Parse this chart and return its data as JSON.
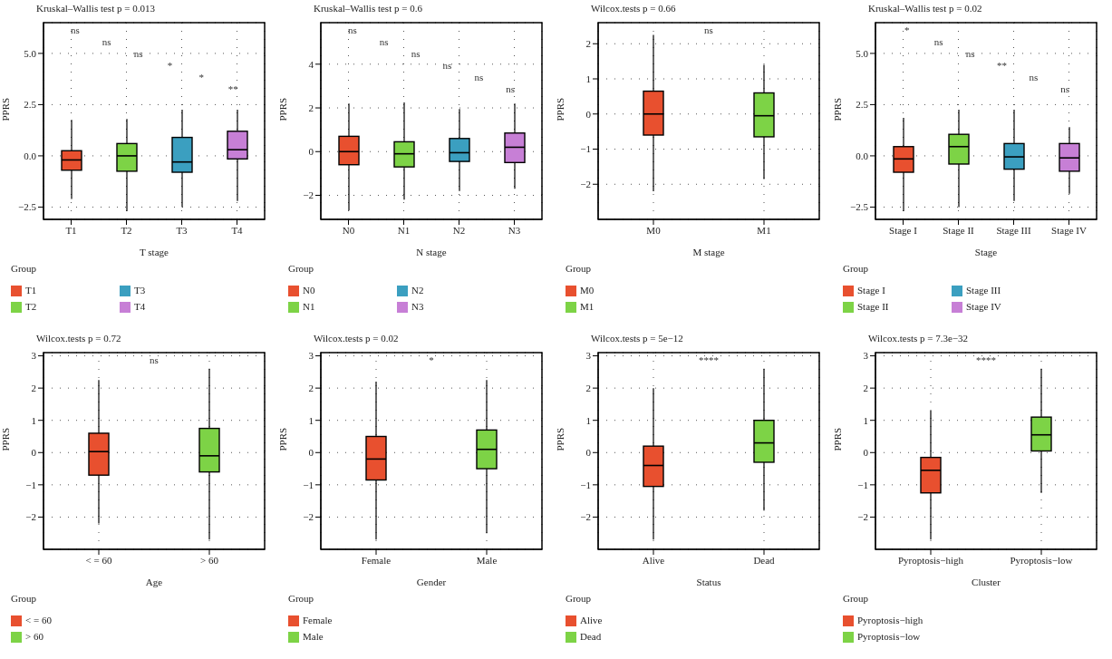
{
  "chart_data": [
    {
      "type": "box",
      "title": "Kruskal–Wallis test p = 0.013",
      "xlabel": "T stage",
      "ylabel": "PPRS",
      "legend_title": "Group",
      "legend": "bottom",
      "grid": true,
      "categories": [
        "T1",
        "T2",
        "T3",
        "T4"
      ],
      "series": [
        {
          "name": "T1",
          "color": "#e8502f",
          "boxes": [
            {
              "low": -2.1,
              "q1": -0.7,
              "median": -0.2,
              "q3": 0.25,
              "high": 1.75
            },
            null,
            null,
            null
          ]
        },
        {
          "name": "T2",
          "color": "#7dd346",
          "boxes": [
            null,
            {
              "low": -2.7,
              "q1": -0.75,
              "median": 0,
              "q3": 0.6,
              "high": 1.8
            },
            null,
            null
          ]
        },
        {
          "name": "T3",
          "color": "#3b9fc0",
          "boxes": [
            null,
            null,
            {
              "low": -2.5,
              "q1": -0.8,
              "median": -0.3,
              "q3": 0.9,
              "high": 2.25
            },
            null
          ]
        },
        {
          "name": "T4",
          "color": "#c77fd6",
          "boxes": [
            null,
            null,
            null,
            {
              "low": -2.2,
              "q1": -0.15,
              "median": 0.3,
              "q3": 1.2,
              "high": 2.25
            }
          ]
        }
      ],
      "ylim": [
        -3.1,
        6.5
      ],
      "yticks": [
        {
          "value": -2.5,
          "label": "−2.5"
        },
        {
          "value": 0,
          "label": "0.0"
        },
        2.5,
        {
          "value": 5,
          "label": "5.0"
        }
      ],
      "annotations": [
        "ns",
        "ns",
        "ns",
        "*",
        "*",
        "**"
      ]
    },
    {
      "type": "box",
      "title": "Kruskal–Wallis test p = 0.6",
      "xlabel": "N stage",
      "ylabel": "PPRS",
      "legend_title": "Group",
      "legend": "bottom",
      "grid": true,
      "categories": [
        "N0",
        "N1",
        "N2",
        "N3"
      ],
      "series": [
        {
          "name": "N0",
          "color": "#e8502f",
          "boxes": [
            {
              "low": -2.7,
              "q1": -0.6,
              "median": 0,
              "q3": 0.7,
              "high": 2.2
            },
            null,
            null,
            null
          ]
        },
        {
          "name": "N1",
          "color": "#7dd346",
          "boxes": [
            null,
            {
              "low": -2.2,
              "q1": -0.7,
              "median": -0.1,
              "q3": 0.45,
              "high": 2.25
            },
            null,
            null
          ]
        },
        {
          "name": "N2",
          "color": "#3b9fc0",
          "boxes": [
            null,
            null,
            {
              "low": -1.8,
              "q1": -0.45,
              "median": -0.05,
              "q3": 0.6,
              "high": 1.95
            },
            null
          ]
        },
        {
          "name": "N3",
          "color": "#c77fd6",
          "boxes": [
            null,
            null,
            null,
            {
              "low": -1.7,
              "q1": -0.5,
              "median": 0.2,
              "q3": 0.85,
              "high": 2.2
            }
          ]
        }
      ],
      "ylim": [
        -3.1,
        5.9
      ],
      "yticks": [
        {
          "value": -2,
          "label": "−2"
        },
        0,
        2,
        4
      ],
      "annotations": [
        "ns",
        "ns",
        "ns",
        "ns",
        "ns",
        "ns"
      ]
    },
    {
      "type": "box",
      "title": "Wilcox.tests p = 0.66",
      "xlabel": "M stage",
      "ylabel": "PPRS",
      "legend_title": "Group",
      "legend": "bottom",
      "grid": true,
      "categories": [
        "M0",
        "M1"
      ],
      "series": [
        {
          "name": "M0",
          "color": "#e8502f",
          "boxes": [
            {
              "low": -2.2,
              "q1": -0.6,
              "median": 0,
              "q3": 0.65,
              "high": 2.25
            },
            null
          ]
        },
        {
          "name": "M1",
          "color": "#7dd346",
          "boxes": [
            null,
            {
              "low": -1.85,
              "q1": -0.65,
              "median": -0.05,
              "q3": 0.6,
              "high": 1.4
            }
          ]
        }
      ],
      "ylim": [
        -3,
        2.6
      ],
      "yticks": [
        {
          "value": -2,
          "label": "−2"
        },
        {
          "value": -1,
          "label": "−1"
        },
        0,
        1,
        2
      ],
      "annotations": [
        "ns"
      ]
    },
    {
      "type": "box",
      "title": "Kruskal–Wallis test p = 0.02",
      "xlabel": "Stage",
      "ylabel": "PPRS",
      "legend_title": "Group",
      "legend": "bottom",
      "grid": true,
      "categories": [
        "Stage I",
        "Stage II",
        "Stage III",
        "Stage IV"
      ],
      "series": [
        {
          "name": "Stage I",
          "color": "#e8502f",
          "boxes": [
            {
              "low": -2.7,
              "q1": -0.8,
              "median": -0.15,
              "q3": 0.45,
              "high": 1.85
            },
            null,
            null,
            null
          ]
        },
        {
          "name": "Stage II",
          "color": "#7dd346",
          "boxes": [
            null,
            {
              "low": -2.5,
              "q1": -0.4,
              "median": 0.45,
              "q3": 1.05,
              "high": 2.25
            },
            null,
            null
          ]
        },
        {
          "name": "Stage III",
          "color": "#3b9fc0",
          "boxes": [
            null,
            null,
            {
              "low": -2.2,
              "q1": -0.65,
              "median": -0.05,
              "q3": 0.6,
              "high": 2.25
            },
            null
          ]
        },
        {
          "name": "Stage IV",
          "color": "#c77fd6",
          "boxes": [
            null,
            null,
            null,
            {
              "low": -1.85,
              "q1": -0.75,
              "median": -0.1,
              "q3": 0.6,
              "high": 1.4
            }
          ]
        }
      ],
      "ylim": [
        -3.1,
        6.5
      ],
      "yticks": [
        {
          "value": -2.5,
          "label": "−2.5"
        },
        {
          "value": 0,
          "label": "0.0"
        },
        2.5,
        {
          "value": 5,
          "label": "5.0"
        }
      ],
      "annotations": [
        "*",
        "ns",
        "ns",
        "**",
        "ns",
        "ns"
      ]
    },
    {
      "type": "box",
      "title": "Wilcox.tests p = 0.72",
      "xlabel": "Age",
      "ylabel": "PPRS",
      "legend_title": "Group",
      "legend": "bottom",
      "grid": true,
      "categories": [
        "< = 60",
        "> 60"
      ],
      "series": [
        {
          "name": "< = 60",
          "color": "#e8502f",
          "boxes": [
            {
              "low": -2.2,
              "q1": -0.7,
              "median": 0.03,
              "q3": 0.6,
              "high": 2.25
            },
            null
          ]
        },
        {
          "name": "> 60",
          "color": "#7dd346",
          "boxes": [
            null,
            {
              "low": -2.7,
              "q1": -0.6,
              "median": -0.1,
              "q3": 0.75,
              "high": 2.6
            }
          ]
        }
      ],
      "ylim": [
        -3,
        3.1
      ],
      "yticks": [
        {
          "value": -2,
          "label": "−2"
        },
        {
          "value": -1,
          "label": "−1"
        },
        0,
        1,
        2,
        3
      ],
      "annotations": [
        "ns"
      ]
    },
    {
      "type": "box",
      "title": "Wilcox.tests p = 0.02",
      "xlabel": "Gender",
      "ylabel": "PPRS",
      "legend_title": "Group",
      "legend": "bottom",
      "grid": true,
      "categories": [
        "Female",
        "Male"
      ],
      "series": [
        {
          "name": "Female",
          "color": "#e8502f",
          "boxes": [
            {
              "low": -2.7,
              "q1": -0.85,
              "median": -0.2,
              "q3": 0.5,
              "high": 2.2
            },
            null
          ]
        },
        {
          "name": "Male",
          "color": "#7dd346",
          "boxes": [
            null,
            {
              "low": -2.5,
              "q1": -0.5,
              "median": 0.1,
              "q3": 0.7,
              "high": 2.25
            }
          ]
        }
      ],
      "ylim": [
        -3,
        3.1
      ],
      "yticks": [
        {
          "value": -2,
          "label": "−2"
        },
        {
          "value": -1,
          "label": "−1"
        },
        0,
        1,
        2,
        3
      ],
      "annotations": [
        "*"
      ]
    },
    {
      "type": "box",
      "title": "Wilcox.tests p = 5e−12",
      "xlabel": "Status",
      "ylabel": "PPRS",
      "legend_title": "Group",
      "legend": "bottom",
      "grid": true,
      "categories": [
        "Alive",
        "Dead"
      ],
      "series": [
        {
          "name": "Alive",
          "color": "#e8502f",
          "boxes": [
            {
              "low": -2.7,
              "q1": -1.05,
              "median": -0.4,
              "q3": 0.2,
              "high": 2.0
            },
            null
          ]
        },
        {
          "name": "Dead",
          "color": "#7dd346",
          "boxes": [
            null,
            {
              "low": -1.8,
              "q1": -0.3,
              "median": 0.3,
              "q3": 1.0,
              "high": 2.6
            }
          ]
        }
      ],
      "ylim": [
        -3,
        3.1
      ],
      "yticks": [
        {
          "value": -2,
          "label": "−2"
        },
        {
          "value": -1,
          "label": "−1"
        },
        0,
        1,
        2,
        3
      ],
      "annotations": [
        "****"
      ]
    },
    {
      "type": "box",
      "title": "Wilcox.tests p = 7.3e−32",
      "xlabel": "Cluster",
      "ylabel": "PPRS",
      "legend_title": "Group",
      "legend": "bottom",
      "grid": true,
      "categories": [
        "Pyroptosis−high",
        "Pyroptosis−low"
      ],
      "series": [
        {
          "name": "Pyroptosis−high",
          "color": "#e8502f",
          "boxes": [
            {
              "low": -2.7,
              "q1": -1.25,
              "median": -0.55,
              "q3": -0.15,
              "high": 1.3
            },
            null
          ]
        },
        {
          "name": "Pyroptosis−low",
          "color": "#7dd346",
          "boxes": [
            null,
            {
              "low": -1.25,
              "q1": 0.05,
              "median": 0.55,
              "q3": 1.1,
              "high": 2.6
            }
          ]
        }
      ],
      "ylim": [
        -3,
        3.1
      ],
      "yticks": [
        {
          "value": -2,
          "label": "−2"
        },
        {
          "value": -1,
          "label": "−1"
        },
        0,
        1,
        2,
        3
      ],
      "annotations": [
        "****"
      ]
    }
  ]
}
